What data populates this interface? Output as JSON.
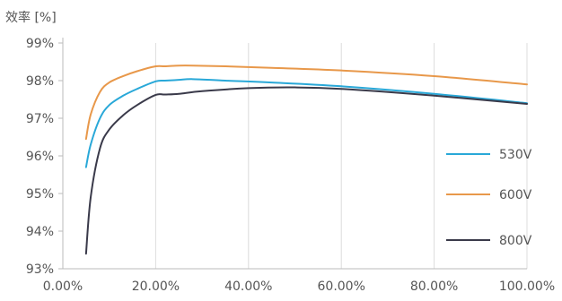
{
  "chart_data": {
    "type": "line",
    "title": "",
    "xlabel": "",
    "ylabel": "效率 [%]",
    "xlim": [
      0,
      100
    ],
    "ylim": [
      93,
      99
    ],
    "x_ticks": [
      0,
      20,
      40,
      60,
      80,
      100
    ],
    "x_tick_labels": [
      "0.00%",
      "20.00%",
      "40.00%",
      "60.00%",
      "80.00%",
      "100.00%"
    ],
    "y_ticks": [
      93,
      94,
      95,
      96,
      97,
      98,
      99
    ],
    "y_tick_labels": [
      "93%",
      "94%",
      "95%",
      "96%",
      "97%",
      "98%",
      "99%"
    ],
    "grid": "vertical",
    "legend_position": "right",
    "series": [
      {
        "name": "530V",
        "color": "#29a8d8",
        "x": [
          5,
          6,
          8,
          10,
          13,
          16,
          20,
          22,
          25,
          28,
          35,
          45,
          60,
          80,
          100
        ],
        "y": [
          95.7,
          96.3,
          97.0,
          97.35,
          97.6,
          97.78,
          97.98,
          98.0,
          98.02,
          98.04,
          98.0,
          97.95,
          97.85,
          97.65,
          97.4
        ]
      },
      {
        "name": "600V",
        "color": "#e8984a",
        "x": [
          5,
          6,
          8,
          10,
          13,
          16,
          20,
          22,
          25,
          28,
          35,
          45,
          60,
          80,
          100
        ],
        "y": [
          96.45,
          97.1,
          97.7,
          97.95,
          98.12,
          98.25,
          98.38,
          98.38,
          98.4,
          98.4,
          98.38,
          98.34,
          98.27,
          98.12,
          97.9
        ]
      },
      {
        "name": "800V",
        "color": "#3a3a4a",
        "x": [
          5,
          6,
          8,
          10,
          13,
          16,
          20,
          22,
          25,
          30,
          40,
          50,
          60,
          80,
          100
        ],
        "y": [
          93.4,
          94.9,
          96.2,
          96.7,
          97.08,
          97.35,
          97.62,
          97.63,
          97.65,
          97.72,
          97.8,
          97.82,
          97.78,
          97.6,
          97.38
        ]
      }
    ]
  }
}
